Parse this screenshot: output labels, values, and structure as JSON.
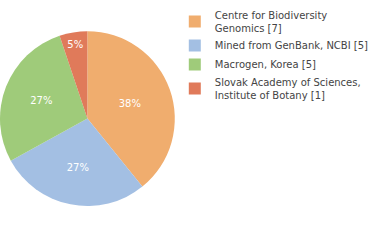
{
  "chart_data": {
    "type": "pie",
    "categories": [
      "Centre for Biodiversity Genomics [7]",
      "Mined from GenBank, NCBI [5]",
      "Macrogen, Korea [5]",
      "Slovak Academy of Sciences, Institute of Botany [1]"
    ],
    "values": [
      38,
      27,
      27,
      5
    ],
    "value_labels": [
      "38%",
      "27%",
      "27%",
      "5%"
    ],
    "colors": [
      "#f0ad6e",
      "#a3bfe3",
      "#9fcb7a",
      "#e07a5a"
    ],
    "data_labels": true,
    "legend": "top-right"
  }
}
